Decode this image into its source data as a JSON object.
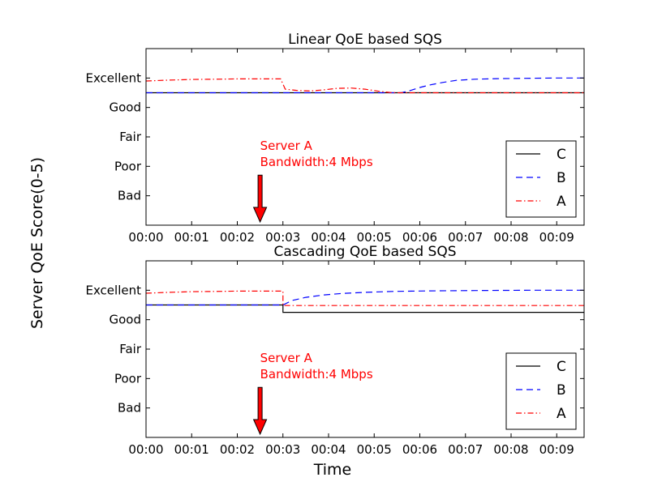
{
  "figure": {
    "ylabel": "Server QoE Score(0-5)",
    "xlabel": "Time"
  },
  "chart_data": [
    {
      "type": "line",
      "title": "Linear QoE based SQS",
      "xlim": [
        0,
        9.6
      ],
      "ylim": [
        0,
        6
      ],
      "x_ticks": [
        {
          "value": 0,
          "label": "00:00"
        },
        {
          "value": 1,
          "label": "00:01"
        },
        {
          "value": 2,
          "label": "00:02"
        },
        {
          "value": 3,
          "label": "00:03"
        },
        {
          "value": 4,
          "label": "00:04"
        },
        {
          "value": 5,
          "label": "00:05"
        },
        {
          "value": 6,
          "label": "00:06"
        },
        {
          "value": 7,
          "label": "00:07"
        },
        {
          "value": 8,
          "label": "00:08"
        },
        {
          "value": 9,
          "label": "00:09"
        }
      ],
      "y_ticks": [
        {
          "value": 1,
          "label": "Bad"
        },
        {
          "value": 2,
          "label": "Poor"
        },
        {
          "value": 3,
          "label": "Fair"
        },
        {
          "value": 4,
          "label": "Good"
        },
        {
          "value": 5,
          "label": "Excellent"
        }
      ],
      "series": [
        {
          "name": "C",
          "color": "#000000",
          "dash": "solid",
          "x": [
            0,
            9.6
          ],
          "y": [
            4.5,
            4.5
          ]
        },
        {
          "name": "B",
          "color": "#0000ff",
          "dash": "dashed",
          "x": [
            0,
            5.6,
            5.8,
            6.0,
            6.2,
            6.5,
            6.8,
            7.2,
            7.7,
            8.3,
            9.0,
            9.6
          ],
          "y": [
            4.5,
            4.5,
            4.58,
            4.68,
            4.76,
            4.85,
            4.92,
            4.96,
            4.98,
            4.99,
            5.0,
            5.0
          ]
        },
        {
          "name": "A",
          "color": "#ff0000",
          "dash": "dashdot",
          "x": [
            0,
            0.5,
            1.0,
            1.5,
            2.0,
            2.5,
            2.95,
            3.05,
            3.3,
            3.6,
            3.9,
            4.2,
            4.5,
            4.8,
            5.1,
            5.4,
            5.7,
            6.0,
            7.0,
            8.0,
            9.0,
            9.6
          ],
          "y": [
            4.9,
            4.93,
            4.95,
            4.96,
            4.97,
            4.97,
            4.97,
            4.62,
            4.58,
            4.56,
            4.6,
            4.65,
            4.66,
            4.62,
            4.55,
            4.5,
            4.5,
            4.5,
            4.5,
            4.5,
            4.5,
            4.5
          ]
        }
      ],
      "annotation": {
        "line1": "Server A",
        "line2": "Bandwidth:4 Mbps",
        "color": "#ff0000",
        "x": 2.5,
        "arrow_top_y": 1.7
      },
      "legend": {
        "placement": "lower-right",
        "order": [
          "C",
          "B",
          "A"
        ]
      }
    },
    {
      "type": "line",
      "title": "Cascading QoE based SQS",
      "xlim": [
        0,
        9.6
      ],
      "ylim": [
        0,
        6
      ],
      "x_ticks": [
        {
          "value": 0,
          "label": "00:00"
        },
        {
          "value": 1,
          "label": "00:01"
        },
        {
          "value": 2,
          "label": "00:02"
        },
        {
          "value": 3,
          "label": "00:03"
        },
        {
          "value": 4,
          "label": "00:04"
        },
        {
          "value": 5,
          "label": "00:05"
        },
        {
          "value": 6,
          "label": "00:06"
        },
        {
          "value": 7,
          "label": "00:07"
        },
        {
          "value": 8,
          "label": "00:08"
        },
        {
          "value": 9,
          "label": "00:09"
        }
      ],
      "y_ticks": [
        {
          "value": 1,
          "label": "Bad"
        },
        {
          "value": 2,
          "label": "Poor"
        },
        {
          "value": 3,
          "label": "Fair"
        },
        {
          "value": 4,
          "label": "Good"
        },
        {
          "value": 5,
          "label": "Excellent"
        }
      ],
      "series": [
        {
          "name": "C",
          "color": "#000000",
          "dash": "solid",
          "x": [
            0,
            3.0,
            3.0,
            9.6
          ],
          "y": [
            4.5,
            4.5,
            4.25,
            4.25
          ]
        },
        {
          "name": "B",
          "color": "#0000ff",
          "dash": "dashed",
          "x": [
            0,
            3.0,
            3.2,
            3.5,
            3.9,
            4.3,
            4.8,
            5.4,
            6.2,
            7.2,
            8.5,
            9.6
          ],
          "y": [
            4.5,
            4.5,
            4.65,
            4.76,
            4.84,
            4.89,
            4.93,
            4.96,
            4.98,
            4.99,
            5.0,
            5.0
          ]
        },
        {
          "name": "A",
          "color": "#ff0000",
          "dash": "dashdot",
          "x": [
            0,
            0.5,
            1.0,
            1.5,
            2.0,
            2.5,
            3.0,
            3.0,
            9.6
          ],
          "y": [
            4.9,
            4.93,
            4.95,
            4.96,
            4.97,
            4.97,
            4.97,
            4.48,
            4.48
          ]
        }
      ],
      "annotation": {
        "line1": "Server A",
        "line2": "Bandwidth:4 Mbps",
        "color": "#ff0000",
        "x": 2.5,
        "arrow_top_y": 1.7
      },
      "legend": {
        "placement": "lower-right",
        "order": [
          "C",
          "B",
          "A"
        ]
      }
    }
  ]
}
